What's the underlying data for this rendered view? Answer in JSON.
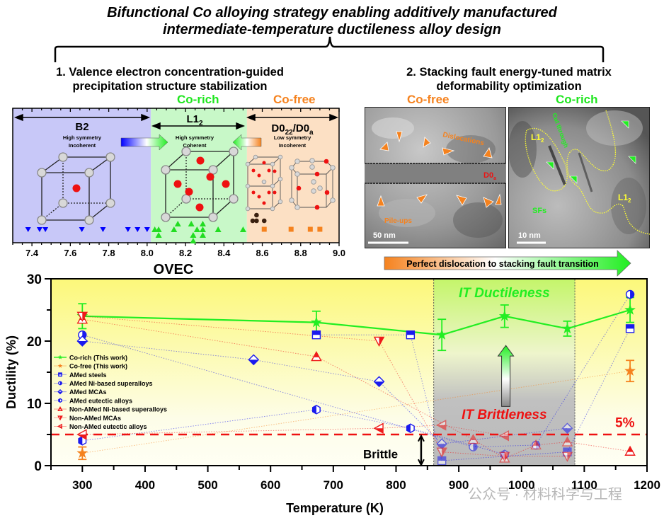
{
  "title_line1": "Bifunctional Co alloying strategy enabling additively manufactured",
  "title_line2": "intermediate-temperature ductileness alloy design",
  "section1": {
    "title_line1": "1. Valence electron concentration-guided",
    "title_line2": "precipitation structure stabilization",
    "co_rich_label": "Co-rich",
    "co_free_label": "Co-free",
    "regions": [
      {
        "name": "B2",
        "sub": "",
        "desc1": "High symmetry",
        "desc2": "Incoherent",
        "color": "#c8c8f8"
      },
      {
        "name": "L1",
        "sub": "2",
        "desc1": "High symmetry",
        "desc2": "Coherent",
        "color": "#c8f8c8"
      },
      {
        "name": "D0",
        "sub": "22",
        "name2": "/D0",
        "sub2": "a",
        "desc1": "Low symmetry",
        "desc2": "Incoherent",
        "color": "#fce0c4"
      }
    ],
    "chart_data": {
      "type": "scatter",
      "xlabel": "OVEC",
      "xlim": [
        7.3,
        9.0
      ],
      "xticks": [
        "7.4",
        "7.6",
        "7.8",
        "8.0",
        "8.2",
        "8.4",
        "8.6",
        "8.8",
        "9.0"
      ],
      "region_bounds": [
        8.02,
        8.52
      ],
      "series": [
        {
          "name": "B2 alloys",
          "marker": "triangle-down",
          "color": "#0000ff",
          "points": [
            [
              7.38,
              0
            ],
            [
              7.44,
              0
            ],
            [
              7.47,
              0
            ],
            [
              7.66,
              0
            ],
            [
              7.77,
              0
            ],
            [
              7.9,
              0
            ],
            [
              7.95,
              0
            ],
            [
              8.0,
              0
            ]
          ]
        },
        {
          "name": "L12 alloys",
          "marker": "triangle-up",
          "color": "#22dd22",
          "points": [
            [
              8.04,
              0
            ],
            [
              8.06,
              0
            ],
            [
              8.06,
              -1
            ],
            [
              8.14,
              0
            ],
            [
              8.16,
              1
            ],
            [
              8.23,
              1
            ],
            [
              8.26,
              0
            ],
            [
              8.29,
              1
            ],
            [
              8.29,
              0
            ],
            [
              8.24,
              -1
            ],
            [
              8.29,
              -1
            ],
            [
              8.24,
              -2
            ],
            [
              8.37,
              0
            ],
            [
              8.5,
              0
            ]
          ]
        },
        {
          "name": "D022 alloys",
          "marker": "circle",
          "color": "#3a2010",
          "points": [
            [
              8.55,
              1
            ],
            [
              8.57,
              1
            ],
            [
              8.61,
              1
            ],
            [
              8.57,
              2
            ]
          ]
        },
        {
          "name": "D0a alloys",
          "marker": "square",
          "color": "#f5821e",
          "points": [
            [
              8.61,
              0
            ],
            [
              8.75,
              0
            ],
            [
              8.85,
              0
            ],
            [
              8.9,
              0
            ]
          ]
        }
      ]
    }
  },
  "section2": {
    "title_line1": "2. Stacking fault energy-tuned matrix",
    "title_line2": "deformability optimization",
    "left_label": "Co-free",
    "right_label": "Co-rich",
    "left_image": {
      "labels": {
        "dislocations": "Dislocations",
        "phase": "D0",
        "phase_sub": "a",
        "pileups": "Pile-ups"
      },
      "scale": "50 nm"
    },
    "right_image": {
      "labels": {
        "phase1": "L1",
        "phase1_sub": "2",
        "cut": "Cut through",
        "phase2": "L1",
        "phase2_sub": "2",
        "sfs": "SFs"
      },
      "scale": "10 nm"
    },
    "transition_label": "Perfect dislocation to stacking fault transition"
  },
  "chart_data": {
    "type": "scatter",
    "title": "",
    "xlabel": "Temperature (K)",
    "ylabel": "Ductility (%)",
    "xlim": [
      250,
      1200
    ],
    "ylim": [
      0,
      30
    ],
    "xticks": [
      300,
      400,
      500,
      600,
      700,
      800,
      900,
      1000,
      1100,
      1200
    ],
    "yticks": [
      0,
      10,
      20,
      30
    ],
    "threshold": {
      "value": 5,
      "label": "5%"
    },
    "it_region": [
      860,
      1085
    ],
    "annotations": {
      "ductileness": "IT Ductileness",
      "brittleness": "IT Brittleness",
      "brittle": "Brittle"
    },
    "legend_position": "left-middle",
    "series": [
      {
        "name": "Co-rich (This work)",
        "marker": "star",
        "color": "#22ee22",
        "line": "solid",
        "x": [
          300,
          673,
          873,
          973,
          1073,
          1173
        ],
        "y": [
          24,
          23,
          21,
          24,
          22,
          25
        ],
        "err": [
          2,
          1.8,
          2.5,
          1.8,
          1.2,
          2
        ]
      },
      {
        "name": "Co-free (This work)",
        "marker": "star",
        "color": "#f5821e",
        "line": "dotted",
        "x": [
          300,
          1173
        ],
        "y": [
          2,
          15.2
        ],
        "err": [
          1,
          1.7
        ]
      },
      {
        "name": "AMed steels",
        "marker": "square",
        "color": "#1a1aee",
        "line": "dotted",
        "x": [
          673,
          823,
          873,
          1073,
          1173
        ],
        "y": [
          21,
          21,
          0.8,
          2.2,
          22
        ]
      },
      {
        "name": "AMed Ni-based superalloys",
        "marker": "circle",
        "color": "#1a1aee",
        "line": "dotted",
        "x": [
          300,
          923,
          1023,
          1173
        ],
        "y": [
          21,
          3,
          3.3,
          27.5
        ]
      },
      {
        "name": "AMed MCAs",
        "marker": "diamond",
        "color": "#1a1aee",
        "line": "dotted",
        "x": [
          300,
          573,
          773,
          873,
          1073
        ],
        "y": [
          20,
          17,
          13.5,
          3.5,
          6
        ]
      },
      {
        "name": "AMed eutectic alloys",
        "marker": "hexagon",
        "color": "#1a1aee",
        "line": "dotted",
        "x": [
          300,
          673,
          823,
          973
        ],
        "y": [
          4,
          9,
          6,
          1.8
        ]
      },
      {
        "name": "Non-AMed Ni-based superalloys",
        "marker": "triangle-up",
        "color": "#ee1a1a",
        "line": "dotted",
        "x": [
          300,
          673,
          923,
          973,
          1023,
          1073,
          1173
        ],
        "y": [
          23.5,
          17.5,
          4.2,
          1.2,
          3.3,
          3.8,
          2.3
        ]
      },
      {
        "name": "Non-AMed MCAs",
        "marker": "triangle-down",
        "color": "#ee1a1a",
        "line": "dotted",
        "x": [
          300,
          773,
          873,
          973,
          1073
        ],
        "y": [
          24,
          20,
          2.2,
          1.5,
          1.5
        ]
      },
      {
        "name": "Non-AMed eutectic alloys",
        "marker": "triangle-left",
        "color": "#ee1a1a",
        "line": "dotted",
        "x": [
          300,
          773,
          873,
          973
        ],
        "y": [
          5,
          6,
          6.5,
          4.8
        ]
      }
    ]
  },
  "watermark": "公众号 · 材料科学与工程"
}
